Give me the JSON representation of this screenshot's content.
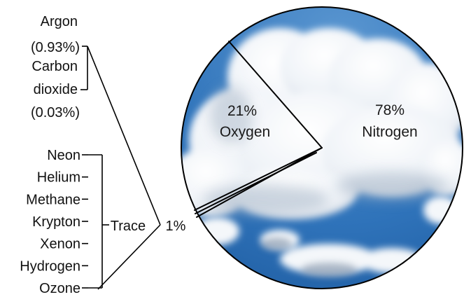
{
  "chart_data": {
    "type": "pie",
    "slices": [
      {
        "key": "nitrogen",
        "percent": 78,
        "percent_label": "78%",
        "name": "Nitrogen"
      },
      {
        "key": "oxygen",
        "percent": 21,
        "percent_label": "21%",
        "name": "Oxygen"
      },
      {
        "key": "other",
        "percent": 1,
        "percent_label": "1%",
        "name": ""
      }
    ],
    "other_breakdown": [
      {
        "name": "Argon",
        "value_label": "(0.93%)",
        "percent": 0.93
      },
      {
        "name": "Carbon dioxide",
        "line1": "Carbon",
        "line2": "dioxide",
        "value_label": "(0.03%)",
        "percent": 0.03
      }
    ],
    "trace": {
      "label": "Trace",
      "gases": [
        "Neon",
        "Helium",
        "Methane",
        "Krypton",
        "Xenon",
        "Hydrogen",
        "Ozone"
      ]
    },
    "colors": {
      "sky": "#2f73ba",
      "cloud": "#ffffff",
      "line": "#000000"
    }
  }
}
